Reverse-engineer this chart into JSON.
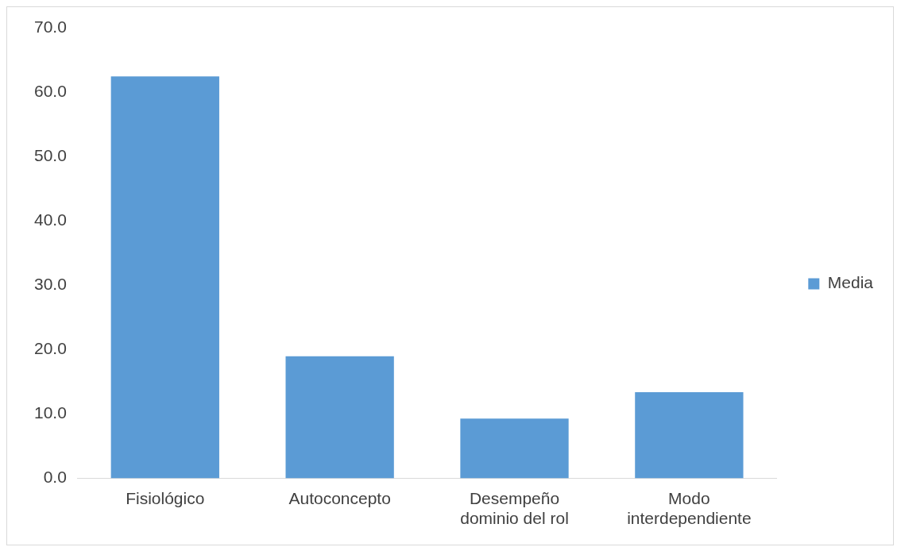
{
  "chart_data": {
    "type": "bar",
    "categories": [
      "Fisiológico",
      "Autoconcepto",
      "Desempeño dominio del rol",
      "Modo interdependiente"
    ],
    "series": [
      {
        "name": "Media",
        "color": "#5b9bd5",
        "values": [
          62.5,
          19.0,
          9.3,
          13.4
        ]
      }
    ],
    "ylim": [
      0,
      70
    ],
    "yticks": [
      {
        "value": 0,
        "label": "0.0"
      },
      {
        "value": 10,
        "label": "10.0"
      },
      {
        "value": 20,
        "label": "20.0"
      },
      {
        "value": 30,
        "label": "30.0"
      },
      {
        "value": 40,
        "label": "40.0"
      },
      {
        "value": 50,
        "label": "50.0"
      },
      {
        "value": 60,
        "label": "60.0"
      },
      {
        "value": 70,
        "label": "70.0"
      }
    ],
    "grid": false,
    "legend": "right"
  }
}
